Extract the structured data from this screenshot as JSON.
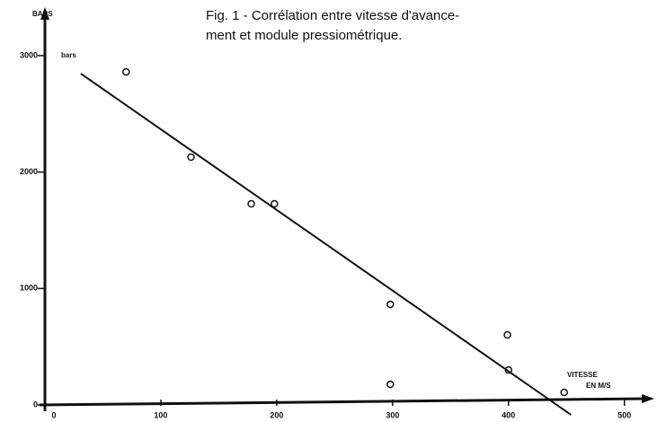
{
  "chart_data": {
    "type": "scatter",
    "title_lines": [
      "Fig. 1 - Corrélation entre vitesse d'avance-",
      "ment et module pressiométrique."
    ],
    "y_label": "BARS",
    "y_unit": "bars",
    "x_label_lines": [
      "VITESSE",
      "EN M/S"
    ],
    "x": [
      70,
      126,
      178,
      198,
      298,
      298,
      399,
      400,
      448
    ],
    "y": [
      2860,
      2128,
      1727,
      1727,
      864,
      177,
      601,
      300,
      108
    ],
    "trend_line": {
      "x": [
        31,
        454
      ],
      "y": [
        2845,
        -85
      ]
    },
    "color": "#111111",
    "xlim": [
      0,
      525
    ],
    "ylim": [
      0,
      3385
    ],
    "xticks": [
      0,
      100,
      200,
      300,
      400,
      500
    ],
    "yticks": [
      0,
      1000,
      2000,
      3000
    ]
  }
}
